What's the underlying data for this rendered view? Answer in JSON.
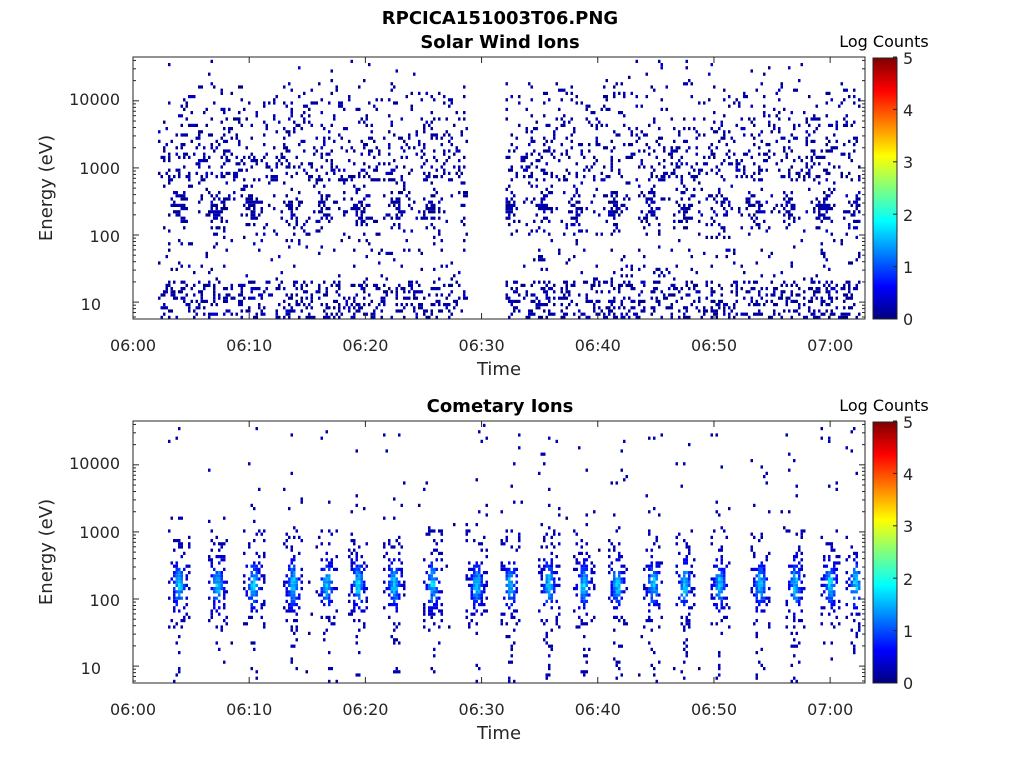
{
  "figure_title": "RPCICA151003T06.PNG",
  "colormap": [
    "#00007f",
    "#0000ff",
    "#007fff",
    "#00ffff",
    "#7fff7f",
    "#ffff00",
    "#ff7f00",
    "#ff0000",
    "#7f0000"
  ],
  "chart_data": [
    {
      "type": "heatmap",
      "title": "Solar Wind Ions",
      "xlabel": "Time",
      "ylabel": "Energy (eV)",
      "x_ticks": [
        "06:00",
        "06:10",
        "06:20",
        "06:30",
        "06:40",
        "06:50",
        "07:00"
      ],
      "x_range_minutes": [
        0,
        63
      ],
      "y_scale": "log",
      "y_ticks": [
        "10",
        "100",
        "1000",
        "10000"
      ],
      "y_tick_values": [
        10,
        100,
        1000,
        10000
      ],
      "y_range": [
        5.6,
        45000
      ],
      "grid": false,
      "colorbar": {
        "label": "Log Counts",
        "range": [
          0,
          5
        ],
        "ticks": [
          "0",
          "1",
          "2",
          "3",
          "4",
          "5"
        ]
      },
      "data_gap_minutes": [
        28.8,
        32.0
      ],
      "burst_center_minutes": [
        4.0,
        7.3,
        10.3,
        13.8,
        16.5,
        19.8,
        22.8,
        25.8,
        29.2,
        32.5,
        35.3,
        38.2,
        41.5,
        44.5,
        47.5,
        50.5,
        53.5,
        56.5,
        59.5,
        62.3
      ],
      "peak_energy_eV": 250,
      "max_log_counts": 0.4
    },
    {
      "type": "heatmap",
      "title": "Cometary Ions",
      "xlabel": "Time",
      "ylabel": "Energy (eV)",
      "x_ticks": [
        "06:00",
        "06:10",
        "06:20",
        "06:30",
        "06:40",
        "06:50",
        "07:00"
      ],
      "x_range_minutes": [
        0,
        63
      ],
      "y_scale": "log",
      "y_ticks": [
        "10",
        "100",
        "1000",
        "10000"
      ],
      "y_tick_values": [
        10,
        100,
        1000,
        10000
      ],
      "y_range": [
        5.6,
        45000
      ],
      "grid": false,
      "colorbar": {
        "label": "Log Counts",
        "range": [
          0,
          5
        ],
        "ticks": [
          "0",
          "1",
          "2",
          "3",
          "4",
          "5"
        ]
      },
      "burst_center_minutes": [
        4.0,
        7.3,
        10.4,
        13.8,
        16.7,
        19.4,
        22.5,
        25.8,
        29.6,
        32.5,
        35.8,
        38.8,
        41.7,
        44.8,
        47.5,
        50.5,
        54.0,
        57.0,
        60.0,
        62.2
      ],
      "peak_energy_eV": 170,
      "max_log_counts": 1.9
    }
  ]
}
